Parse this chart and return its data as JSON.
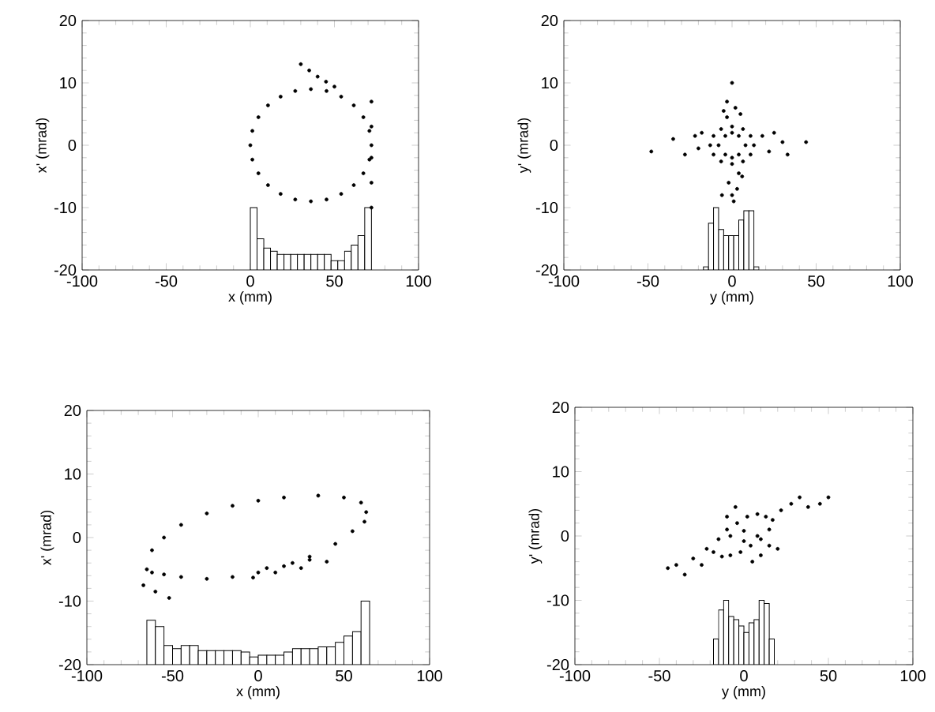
{
  "chart_data": [
    {
      "type": "scatter",
      "xlabel": "x (mm)",
      "ylabel": "x' (mrad)",
      "xlim": [
        -100,
        100
      ],
      "ylim": [
        -20,
        20
      ],
      "xticks": [
        -100,
        -50,
        0,
        50,
        100
      ],
      "yticks": [
        -20,
        -10,
        0,
        10,
        20
      ],
      "marker": "circle",
      "series": [
        {
          "color": "#000000",
          "x": [
            72,
            70.8,
            67.2,
            61.5,
            54,
            45.3,
            36,
            26.7,
            18,
            10.5,
            4.8,
            1.2,
            0,
            1.2,
            4.8,
            10.5,
            18,
            26.7,
            36,
            45.3,
            54,
            61.5,
            67.2,
            70.8,
            30,
            35,
            40,
            45,
            50,
            72,
            72,
            72,
            72,
            72
          ],
          "values": [
            0,
            2.3,
            4.5,
            6.4,
            7.8,
            8.7,
            9,
            8.7,
            7.8,
            6.4,
            4.5,
            2.3,
            0,
            -2.3,
            -4.5,
            -6.4,
            -7.8,
            -8.7,
            -9,
            -8.7,
            -7.8,
            -6.4,
            -4.5,
            -2.3,
            13,
            12,
            11,
            10.2,
            9.4,
            -10,
            -6,
            -2,
            3,
            7
          ]
        },
        {
          "type": "bar",
          "color": "#000000",
          "x": [
            2,
            6,
            10,
            14,
            18,
            22,
            26,
            30,
            34,
            38,
            42,
            46,
            50,
            54,
            58,
            62,
            66,
            70
          ],
          "base": [
            -20,
            -20,
            -20,
            -20,
            -20,
            -20,
            -20,
            -20,
            -20,
            -20,
            -20,
            -20,
            -20,
            -20,
            -20,
            -20,
            -20,
            -20
          ],
          "values": [
            10,
            5,
            3.5,
            3,
            2.5,
            2.5,
            2.5,
            2.5,
            2.5,
            2.5,
            2.5,
            2.5,
            1.5,
            1.5,
            3,
            4,
            5.5,
            10
          ]
        }
      ]
    },
    {
      "type": "scatter",
      "xlabel": "y (mm)",
      "ylabel": "y' (mrad)",
      "xlim": [
        -100,
        100
      ],
      "ylim": [
        -20,
        20
      ],
      "xticks": [
        -100,
        -50,
        0,
        50,
        100
      ],
      "yticks": [
        -20,
        -10,
        0,
        10,
        20
      ],
      "marker": "circle",
      "series": [
        {
          "color": "#000000",
          "x": [
            13,
            11,
            6.5,
            0,
            -6.5,
            -11,
            -13,
            -11,
            -6.5,
            0,
            6.5,
            11,
            8,
            4,
            0,
            -4,
            -8,
            -4,
            0,
            4,
            -48,
            -35,
            -28,
            -22,
            -20,
            -18,
            18,
            22,
            25,
            30,
            33,
            44,
            -3,
            2,
            5,
            -5,
            0,
            -2,
            3,
            6,
            -6,
            1,
            0,
            -3,
            4
          ],
          "values": [
            0,
            1.5,
            2.6,
            3,
            2.6,
            1.5,
            0,
            -1.5,
            -2.6,
            -3,
            -2.6,
            -1.5,
            0,
            1.5,
            2,
            1.5,
            0,
            -1.5,
            -2,
            -1.5,
            -1,
            1,
            -1.5,
            1.5,
            -0.5,
            2,
            1.5,
            -1,
            2,
            0.5,
            -1.5,
            0.5,
            7,
            6,
            5,
            5.5,
            10,
            -6,
            -7,
            -5,
            -8,
            -9,
            -8,
            4.5,
            -4.5
          ]
        },
        {
          "type": "bar",
          "color": "#000000",
          "x": [
            -15.5,
            -12.5,
            -9.5,
            -6.5,
            -3.5,
            -0.5,
            2.5,
            5.5,
            8.5,
            11.5,
            14.5
          ],
          "base": [
            -20,
            -20,
            -20,
            -20,
            -20,
            -20,
            -20,
            -20,
            -20,
            -20,
            -20
          ],
          "values": [
            0.5,
            7.5,
            10,
            6.5,
            5.5,
            5.5,
            5.5,
            8,
            9.5,
            9.5,
            0.5
          ]
        }
      ]
    },
    {
      "type": "scatter",
      "xlabel": "x (mm)",
      "ylabel": "x' (mrad)",
      "xlim": [
        -100,
        100
      ],
      "ylim": [
        -20,
        20
      ],
      "xticks": [
        -100,
        -50,
        0,
        50,
        100
      ],
      "yticks": [
        -20,
        -10,
        0,
        10,
        20
      ],
      "marker": "circle",
      "series": [
        {
          "color": "#000000",
          "x": [
            -65,
            -62,
            -55,
            -45,
            -30,
            -15,
            0,
            15,
            35,
            50,
            60,
            63,
            62,
            55,
            45,
            30,
            15,
            0,
            -15,
            -30,
            -45,
            -55,
            -62,
            -67,
            -60,
            -52,
            -3,
            10,
            25,
            40,
            5,
            20,
            30
          ],
          "values": [
            -5,
            -2,
            0,
            2,
            3.8,
            5,
            5.8,
            6.3,
            6.6,
            6.3,
            5.5,
            4,
            2.5,
            1,
            -1,
            -3,
            -4.5,
            -5.5,
            -6.2,
            -6.5,
            -6.2,
            -5.8,
            -5.5,
            -7.5,
            -8.5,
            -9.5,
            -6.3,
            -5.5,
            -4.8,
            -3.8,
            -4.8,
            -4,
            -3.5
          ]
        },
        {
          "type": "bar",
          "color": "#000000",
          "x": [
            -62.5,
            -57.5,
            -52.5,
            -47.5,
            -42.5,
            -37.5,
            -32.5,
            -27.5,
            -22.5,
            -17.5,
            -12.5,
            -7.5,
            -2.5,
            2.5,
            7.5,
            12.5,
            17.5,
            22.5,
            27.5,
            32.5,
            37.5,
            42.5,
            47.5,
            52.5,
            57.5,
            62.5
          ],
          "base": [
            -20,
            -20,
            -20,
            -20,
            -20,
            -20,
            -20,
            -20,
            -20,
            -20,
            -20,
            -20,
            -20,
            -20,
            -20,
            -20,
            -20,
            -20,
            -20,
            -20,
            -20,
            -20,
            -20,
            -20,
            -20,
            -20
          ],
          "values": [
            7,
            6,
            3,
            2.5,
            3,
            3,
            2.2,
            2.2,
            2.2,
            2.2,
            2.2,
            2,
            1.2,
            1.5,
            1.5,
            1.5,
            2,
            2.5,
            2.5,
            2.5,
            2.8,
            2.8,
            3.5,
            4.5,
            5.2,
            10
          ]
        }
      ]
    },
    {
      "type": "scatter",
      "xlabel": "y (mm)",
      "ylabel": "y' (mrad)",
      "xlim": [
        -100,
        100
      ],
      "ylim": [
        -20,
        20
      ],
      "xticks": [
        -100,
        -50,
        0,
        50,
        100
      ],
      "yticks": [
        -20,
        -10,
        0,
        10,
        20
      ],
      "marker": "circle",
      "series": [
        {
          "color": "#000000",
          "x": [
            -18,
            -15,
            -10,
            -4,
            2,
            8,
            13,
            17,
            15,
            10,
            4,
            -2,
            -8,
            -13,
            -8,
            0,
            8,
            0,
            -45,
            -40,
            -35,
            -30,
            -25,
            -22,
            22,
            28,
            33,
            38,
            45,
            50,
            -10,
            -5,
            5,
            10,
            15,
            20
          ],
          "values": [
            -2.5,
            -0.5,
            1,
            2,
            3,
            3.4,
            3,
            2.5,
            1,
            -0.5,
            -1.5,
            -2.5,
            -3,
            -3.2,
            0,
            0.8,
            0,
            -0.8,
            -5,
            -4.5,
            -6,
            -3.5,
            -4.5,
            -2,
            4,
            5,
            6,
            4.5,
            5,
            6,
            3,
            4.5,
            -4,
            -3,
            -1.5,
            -2
          ]
        },
        {
          "type": "bar",
          "color": "#000000",
          "x": [
            -16.5,
            -13.5,
            -10.5,
            -7.5,
            -4.5,
            -1.5,
            1.5,
            4.5,
            7.5,
            10.5,
            13.5,
            16.5
          ],
          "base": [
            -20,
            -20,
            -20,
            -20,
            -20,
            -20,
            -20,
            -20,
            -20,
            -20,
            -20,
            -20
          ],
          "values": [
            4,
            8.5,
            10,
            7.5,
            7,
            6,
            5,
            6.5,
            7,
            10,
            9.5,
            4
          ]
        }
      ]
    }
  ]
}
